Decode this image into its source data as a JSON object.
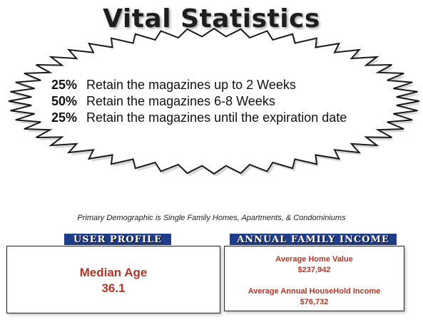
{
  "title": "Vital Statistics",
  "stats": [
    {
      "percent": "25%",
      "text": "Retain the magazines up to 2 Weeks"
    },
    {
      "percent": "50%",
      "text": "Retain the magazines 6-8 Weeks"
    },
    {
      "percent": "25%",
      "text": "Retain the magazines until the expiration date"
    }
  ],
  "demographic_note": "Primary Demographic is Single Family Homes, Apartments, & Condominiums",
  "user_profile": {
    "banner": "USER PROFILE",
    "median_age_label": "Median Age",
    "median_age_value": "36.1"
  },
  "annual_family_income": {
    "banner": "ANNUAL FAMILY INCOME",
    "home_value_label": "Average Home Value",
    "home_value": "$237,942",
    "household_income_label": "Average Annual HouseHold Income",
    "household_income": "$76,732"
  },
  "colors": {
    "banner_bg": "#1f3c88",
    "accent_red": "#b23526",
    "title": "#1e1e1e"
  }
}
